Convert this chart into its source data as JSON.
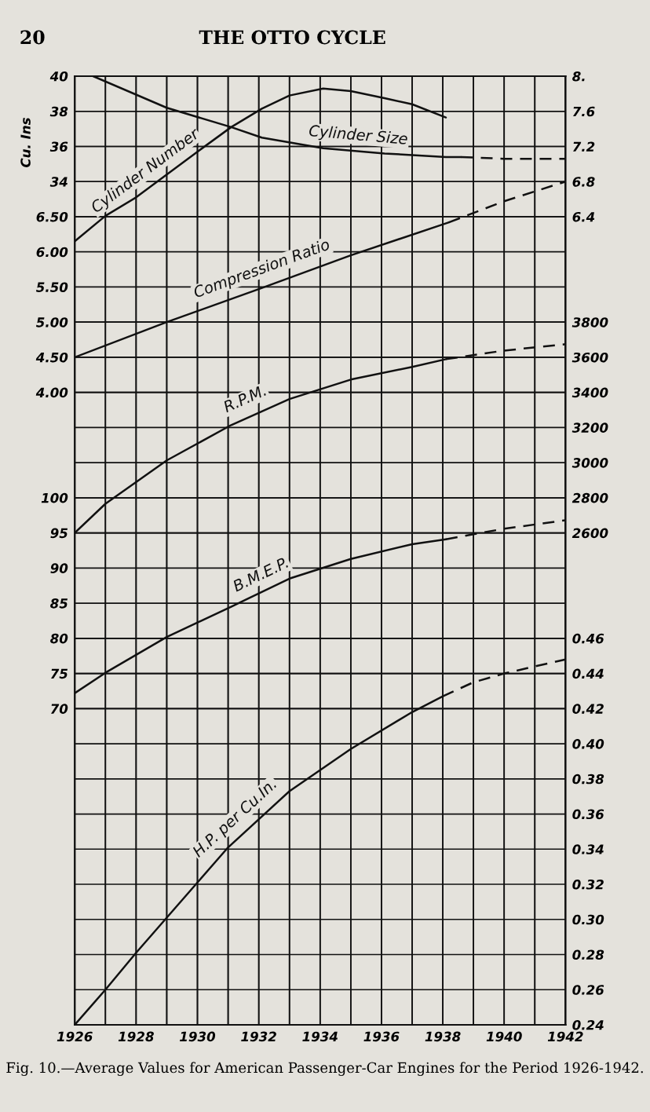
{
  "chart_data": [
    {
      "type": "line",
      "title": "Fig. 10.—Average Values for American Passenger-Car Engines for the Period 1926-1942.",
      "annotations": [
        "20",
        "THE OTTO CYCLE"
      ],
      "ylabel": "Cu. Ins",
      "tick_labels": "y",
      "xlim": [
        1926,
        1942
      ],
      "xticks": [
        1926,
        1927,
        1928,
        1929,
        1930,
        1931,
        1932,
        1933,
        1934,
        1935,
        1936,
        1937,
        1938,
        1939,
        1940,
        1941,
        1942
      ],
      "ylim": [
        -14,
        40
      ],
      "yticks": [
        34,
        36,
        38,
        40
      ],
      "y2lim": [
        -2.8,
        8
      ],
      "y2ticks": [
        6.4,
        6.8,
        7.2,
        7.6,
        {
          "value": 8,
          "label": "8."
        }
      ],
      "y3lim": [
        -5,
        8.5
      ],
      "y3ticks": [
        {
          "value": 4,
          "label": "4.00"
        },
        {
          "value": 4.5,
          "label": "4.50"
        },
        {
          "value": 5,
          "label": "5.00"
        },
        {
          "value": 5.5,
          "label": "5.50"
        },
        {
          "value": 6,
          "label": "6.00"
        },
        {
          "value": 6.5,
          "label": "6.50"
        }
      ],
      "grid": true,
      "series": [
        {
          "name": "Cylinder Size",
          "axis": "y",
          "color": "#111111",
          "x": [
            1926.6,
            1929,
            1931.1,
            1932.1,
            1934.1,
            1936.1,
            1938.1,
            1938.6
          ],
          "values": [
            40,
            38.2,
            37.1,
            36.5,
            35.9,
            35.6,
            35.4,
            35.4
          ]
        },
        {
          "axis": "y",
          "color": "#111111",
          "line_style": "dashed",
          "x": [
            1938.6,
            1940,
            1942
          ],
          "values": [
            35.4,
            35.3,
            35.3
          ]
        },
        {
          "name": "Cylinder Number",
          "axis": "y2",
          "color": "#111111",
          "x": [
            1926,
            1927,
            1928,
            1929,
            1930,
            1931.1,
            1932.1,
            1933,
            1934.1,
            1935,
            1936.1,
            1937,
            1938.1
          ],
          "values": [
            6.12,
            6.41,
            6.62,
            6.88,
            7.14,
            7.42,
            7.63,
            7.78,
            7.86,
            7.83,
            7.75,
            7.68,
            7.53
          ]
        },
        {
          "name": "Compression Ratio",
          "axis": "y3",
          "color": "#111111",
          "x": [
            1926,
            1929,
            1932,
            1935,
            1938.2
          ],
          "values": [
            4.5,
            5.0,
            5.47,
            5.95,
            6.42
          ]
        },
        {
          "axis": "y3",
          "color": "#111111",
          "line_style": "dashed",
          "x": [
            1938.2,
            1940,
            1942
          ],
          "values": [
            6.42,
            6.72,
            7.0
          ]
        }
      ]
    },
    {
      "type": "line",
      "xlim": [
        1926,
        1942
      ],
      "xticks": [
        1926,
        {
          "value": 1927,
          "label": null
        },
        1928,
        {
          "value": 1929,
          "label": null
        },
        1930,
        {
          "value": 1931,
          "label": null
        },
        1932,
        {
          "value": 1933,
          "label": null
        },
        1934,
        {
          "value": 1935,
          "label": null
        },
        1936,
        {
          "value": 1937,
          "label": null
        },
        1938,
        {
          "value": 1939,
          "label": null
        },
        1940,
        {
          "value": 1941,
          "label": null
        },
        1942
      ],
      "ylim": [
        25,
        160
      ],
      "yticks": [
        70,
        75,
        80,
        85,
        90,
        95,
        100
      ],
      "y2lim": [
        -200,
        5200
      ],
      "y2ticks": [
        2600,
        2800,
        3000,
        3200,
        3400,
        3600,
        3800
      ],
      "y3lim": [
        0.24,
        0.78
      ],
      "y3ticks": [
        0.24,
        0.26,
        0.28,
        {
          "value": 0.3,
          "label": "0.30"
        },
        0.32,
        0.34,
        0.36,
        0.38,
        {
          "value": 0.4,
          "label": "0.40"
        },
        0.42,
        0.44,
        0.46
      ],
      "grid": true,
      "series": [
        {
          "name": "R.P.M.",
          "axis": "y2",
          "color": "#111111",
          "x": [
            1926,
            1927,
            1929,
            1931.1,
            1933,
            1935,
            1937,
            1938.1
          ],
          "values": [
            2600,
            2766,
            3013,
            3214,
            3362,
            3473,
            3545,
            3589
          ]
        },
        {
          "axis": "y2",
          "color": "#111111",
          "line_style": "dashed",
          "x": [
            1938.1,
            1940,
            1942
          ],
          "values": [
            3589,
            3638,
            3674
          ]
        },
        {
          "name": "B.M.E.P.",
          "axis": "y",
          "color": "#111111",
          "x": [
            1926,
            1927,
            1929,
            1931.1,
            1933,
            1935,
            1937,
            1938.1
          ],
          "values": [
            72.2,
            75.1,
            80.2,
            84.5,
            88.5,
            91.3,
            93.4,
            94.1
          ]
        },
        {
          "axis": "y",
          "color": "#111111",
          "line_style": "dashed",
          "x": [
            1938.1,
            1940,
            1942
          ],
          "values": [
            94.1,
            95.6,
            96.8
          ]
        },
        {
          "name": "H.P. per Cu.In.",
          "axis": "y3",
          "color": "#111111",
          "x": [
            1926,
            1927,
            1928,
            1929,
            1930,
            1931,
            1933,
            1935,
            1937,
            1938
          ],
          "values": [
            0.24,
            0.26,
            0.281,
            0.301,
            0.321,
            0.341,
            0.373,
            0.397,
            0.418,
            0.427
          ]
        },
        {
          "axis": "y3",
          "color": "#111111",
          "line_style": "dashed",
          "x": [
            1938,
            1939,
            1940,
            1942
          ],
          "values": [
            0.427,
            0.435,
            0.44,
            0.448
          ]
        }
      ]
    }
  ]
}
